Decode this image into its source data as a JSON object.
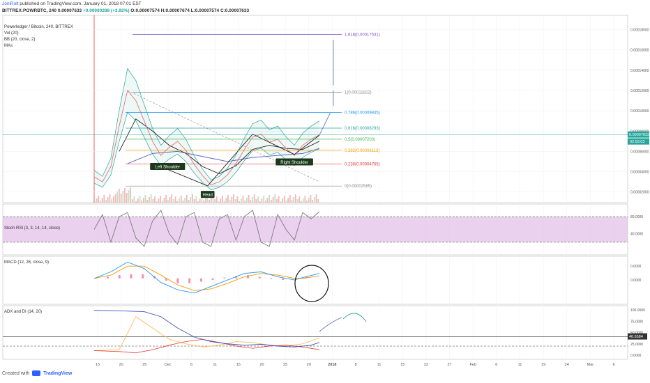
{
  "header": {
    "author": "JoniRolt",
    "published": "published on TradingView.com, January 01, 2018 07:01 EST",
    "symbol": "BITTREX:POWRBTC, 240",
    "last": "0.00007633",
    "change": "+0.00000288 (+3.92%)",
    "ohlc": "O:0.00007574 H:0.00007674 L:0.00007574 C:0.00007633"
  },
  "legend": {
    "pair": "Powerledger / Bitcoin, 240, BITTREX",
    "vol": "Vol (20)",
    "bb": "BB (20, close, 2)",
    "mas": "MAs"
  },
  "footer": {
    "created": "Created with",
    "brand": "TradingView"
  },
  "colors": {
    "ma_blue": "#2196f3",
    "ma_black": "#222222",
    "bb": "#26a69a",
    "stoch": "#7c7c7c",
    "stoch_band": "#e1bee7",
    "macd": "#2196f3",
    "signal": "#ff9800",
    "hist": "#f48fb1",
    "adx": "#3f51b5",
    "di_plus": "#ffb74d",
    "di_minus": "#e53935"
  },
  "chart_data": [
    {
      "type": "line",
      "name": "price",
      "ylim": [
        1.5e-05,
        0.00019
      ],
      "y_ticks": [
        "0.00002000",
        "0.00004000",
        "0.00006000",
        "0.00008000",
        "0.00010000",
        "0.00012000",
        "0.00014000",
        "0.00016000",
        "0.00018000"
      ],
      "x_ticks": [
        "15",
        "20",
        "25",
        "Dec",
        "6",
        "11",
        "15",
        "20",
        "25",
        "29",
        "2018",
        "8",
        "11",
        "15",
        "22",
        "27",
        "Feb",
        "6",
        "11",
        "19",
        "24",
        "Mar",
        "6"
      ],
      "price_label": "0.00007633",
      "countdown": "02:59:03",
      "fib": [
        {
          "label": "1.618(0.00017531)",
          "value": 0.00017531,
          "color": "#7e57c2"
        },
        {
          "label": "1(0.00011822)",
          "value": 0.00011822,
          "color": "#888888"
        },
        {
          "label": "0.786(0.00009845)",
          "value": 9.845e-05,
          "color": "#2196f3"
        },
        {
          "label": "0.618(0.00008293)",
          "value": 8.293e-05,
          "color": "#26a69a"
        },
        {
          "label": "0.5(0.00007203)",
          "value": 7.203e-05,
          "color": "#4caf50"
        },
        {
          "label": "0.382(0.00006113)",
          "value": 6.113e-05,
          "color": "#ff9800"
        },
        {
          "label": "0.236(0.00004765)",
          "value": 4.765e-05,
          "color": "#e53935"
        },
        {
          "label": "0(0.00002585)",
          "value": 2.585e-05,
          "color": "#888888"
        }
      ],
      "annotations": [
        {
          "text": "Left Shoulder",
          "x": 8.8,
          "y": 4.45e-05
        },
        {
          "text": "Head",
          "x": 13.6,
          "y": 1.7e-05
        },
        {
          "text": "Right Shoulder",
          "x": 24.0,
          "y": 4.9e-05
        }
      ],
      "series": [
        {
          "name": "price",
          "values": [
            [
              0,
              3.5e-05
            ],
            [
              1,
              3e-05
            ],
            [
              2,
              4.5e-05
            ],
            [
              3,
              8.5e-05
            ],
            [
              4,
              0.00012
            ],
            [
              5,
              0.00011
            ],
            [
              6,
              9e-05
            ],
            [
              7,
              7e-05
            ],
            [
              8,
              5.6e-05
            ],
            [
              9,
              6.4e-05
            ],
            [
              10,
              7e-05
            ],
            [
              11,
              6.1e-05
            ],
            [
              12,
              4.7e-05
            ],
            [
              13,
              3.6e-05
            ],
            [
              14,
              2.7e-05
            ],
            [
              15,
              3e-05
            ],
            [
              16,
              3.7e-05
            ],
            [
              17,
              4.8e-05
            ],
            [
              18,
              6.2e-05
            ],
            [
              19,
              7.4e-05
            ],
            [
              20,
              7.7e-05
            ],
            [
              21,
              6.9e-05
            ],
            [
              22,
              7.2e-05
            ],
            [
              23,
              6.3e-05
            ],
            [
              24,
              5.6e-05
            ],
            [
              25,
              6.6e-05
            ],
            [
              26,
              7.2e-05
            ],
            [
              27,
              7.63e-05
            ]
          ]
        },
        {
          "name": "ma_fast",
          "values": [
            [
              3,
              6e-05
            ],
            [
              5,
              9.2e-05
            ],
            [
              7,
              8e-05
            ],
            [
              9,
              6.6e-05
            ],
            [
              11,
              5.8e-05
            ],
            [
              13,
              4.5e-05
            ],
            [
              15,
              3.8e-05
            ],
            [
              17,
              4.6e-05
            ],
            [
              19,
              6.2e-05
            ],
            [
              21,
              6.6e-05
            ],
            [
              23,
              6.3e-05
            ],
            [
              25,
              6.2e-05
            ],
            [
              27,
              7e-05
            ]
          ]
        },
        {
          "name": "ma_slow",
          "values": [
            [
              4,
              4.8e-05
            ],
            [
              7,
              5.8e-05
            ],
            [
              10,
              6e-05
            ],
            [
              13,
              5.5e-05
            ],
            [
              16,
              5e-05
            ],
            [
              19,
              5.4e-05
            ],
            [
              22,
              5.6e-05
            ],
            [
              25,
              5.8e-05
            ],
            [
              27,
              6.3e-05
            ]
          ]
        }
      ]
    },
    {
      "type": "line",
      "name": "stoch_rsi",
      "title": "Stoch RSI (3, 3, 14, 14, close)",
      "ylim": [
        0,
        100
      ],
      "band": [
        20,
        80
      ],
      "y_ticks": [
        "80.0000",
        "40.0000"
      ],
      "series": [
        {
          "name": "k",
          "values": [
            [
              0,
              50
            ],
            [
              1,
              85
            ],
            [
              2,
              20
            ],
            [
              3,
              80
            ],
            [
              4,
              90
            ],
            [
              5,
              30
            ],
            [
              6,
              10
            ],
            [
              7,
              70
            ],
            [
              8,
              95
            ],
            [
              9,
              40
            ],
            [
              10,
              15
            ],
            [
              11,
              80
            ],
            [
              12,
              90
            ],
            [
              13,
              20
            ],
            [
              14,
              10
            ],
            [
              15,
              75
            ],
            [
              16,
              85
            ],
            [
              17,
              25
            ],
            [
              18,
              80
            ],
            [
              19,
              95
            ],
            [
              20,
              20
            ],
            [
              21,
              10
            ],
            [
              22,
              85
            ],
            [
              23,
              50
            ],
            [
              24,
              25
            ],
            [
              25,
              90
            ],
            [
              26,
              75
            ],
            [
              27,
              92
            ]
          ]
        }
      ]
    },
    {
      "type": "line",
      "name": "macd",
      "title": "MACD (12, 26, close, 9)",
      "ylim": [
        -2.5e-05,
        2.2e-05
      ],
      "y_ticks": [
        "0.0000",
        "0.0000"
      ],
      "series": [
        {
          "name": "macd",
          "values": [
            [
              0,
              0
            ],
            [
              2,
              8e-06
            ],
            [
              4,
              2e-05
            ],
            [
              6,
              1.2e-05
            ],
            [
              8,
              -5e-06
            ],
            [
              10,
              -1.4e-05
            ],
            [
              12,
              -1.8e-05
            ],
            [
              14,
              -1e-05
            ],
            [
              16,
              -2e-06
            ],
            [
              18,
              6e-06
            ],
            [
              20,
              8e-06
            ],
            [
              22,
              2e-06
            ],
            [
              24,
              -2e-06
            ],
            [
              25,
              1e-06
            ],
            [
              27,
              6e-06
            ]
          ]
        },
        {
          "name": "signal",
          "values": [
            [
              0,
              0
            ],
            [
              2,
              4e-06
            ],
            [
              4,
              1.5e-05
            ],
            [
              6,
              1.5e-05
            ],
            [
              8,
              4e-06
            ],
            [
              10,
              -8e-06
            ],
            [
              12,
              -1.5e-05
            ],
            [
              14,
              -1.3e-05
            ],
            [
              16,
              -6e-06
            ],
            [
              18,
              2e-06
            ],
            [
              20,
              6e-06
            ],
            [
              22,
              4e-06
            ],
            [
              24,
              0.0
            ],
            [
              25,
              0.0
            ],
            [
              27,
              3e-06
            ]
          ]
        }
      ],
      "histogram": [
        2e-06,
        4e-06,
        5e-06,
        5e-06,
        3e-06,
        -3e-06,
        -6e-06,
        -6e-06,
        -4e-06,
        -2e-06,
        1e-06,
        3e-06,
        4e-06,
        2e-06,
        -1e-06,
        -2e-06,
        0.0,
        2e-06
      ]
    },
    {
      "type": "line",
      "name": "adx_di",
      "title": "ADX and DI (14, 20)",
      "ylim": [
        0,
        100
      ],
      "y_ticks": [
        "100.0000",
        "75.0000",
        "50.0000",
        "25.0000",
        "0.0000"
      ],
      "current": "40.6584",
      "level": 20,
      "series": [
        {
          "name": "adx",
          "values": [
            [
              0,
              99
            ],
            [
              3,
              98
            ],
            [
              6,
              96
            ],
            [
              8,
              85
            ],
            [
              10,
              60
            ],
            [
              12,
              40
            ],
            [
              14,
              30
            ],
            [
              16,
              25
            ],
            [
              18,
              22
            ],
            [
              20,
              24
            ],
            [
              22,
              20
            ],
            [
              24,
              18
            ],
            [
              26,
              22
            ],
            [
              27,
              28
            ]
          ]
        },
        {
          "name": "di_plus",
          "values": [
            [
              0,
              10
            ],
            [
              3,
              12
            ],
            [
              5,
              85
            ],
            [
              7,
              60
            ],
            [
              9,
              35
            ],
            [
              11,
              25
            ],
            [
              13,
              18
            ],
            [
              15,
              22
            ],
            [
              17,
              30
            ],
            [
              19,
              28
            ],
            [
              21,
              22
            ],
            [
              23,
              20
            ],
            [
              25,
              25
            ],
            [
              27,
              38
            ]
          ]
        },
        {
          "name": "di_minus",
          "values": [
            [
              0,
              10
            ],
            [
              3,
              8
            ],
            [
              5,
              5
            ],
            [
              7,
              12
            ],
            [
              9,
              22
            ],
            [
              11,
              30
            ],
            [
              13,
              35
            ],
            [
              15,
              28
            ],
            [
              17,
              20
            ],
            [
              19,
              15
            ],
            [
              21,
              20
            ],
            [
              23,
              22
            ],
            [
              25,
              18
            ],
            [
              27,
              12
            ]
          ]
        }
      ]
    }
  ]
}
